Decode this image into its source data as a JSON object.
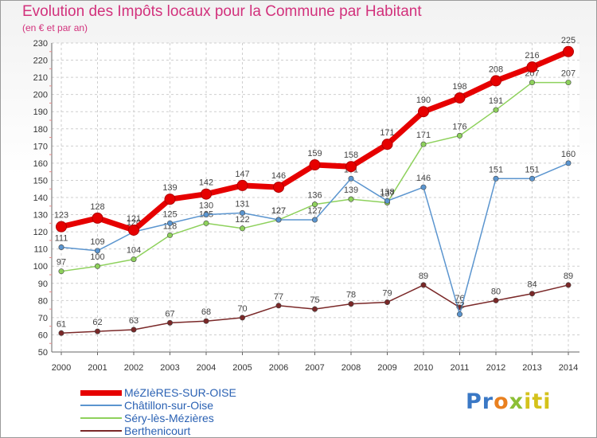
{
  "page": {
    "title": "Evolution des Impôts locaux pour la Commune par Habitant",
    "subtitle": "(en € et par an)"
  },
  "brand": {
    "parts": [
      "Pr",
      "o",
      "x",
      "iti"
    ]
  },
  "chart_data": {
    "type": "line",
    "title": "Evolution des Impôts locaux pour la Commune par Habitant",
    "subtitle": "(en € et par an)",
    "xlabel": "",
    "ylabel": "",
    "x": [
      2000,
      2001,
      2002,
      2003,
      2004,
      2005,
      2006,
      2007,
      2008,
      2009,
      2010,
      2011,
      2012,
      2013,
      2014
    ],
    "ylim": [
      50,
      230
    ],
    "yticks": [
      50,
      60,
      70,
      80,
      90,
      100,
      110,
      120,
      130,
      140,
      150,
      160,
      170,
      180,
      190,
      200,
      210,
      220,
      230
    ],
    "grid": true,
    "legend_position": "bottom-left",
    "series": [
      {
        "name": "Berthenicourt",
        "color": "#7a2828",
        "values": [
          61,
          62,
          63,
          67,
          68,
          70,
          77,
          75,
          78,
          79,
          89,
          76,
          80,
          84,
          89
        ],
        "labels": [
          "61",
          "62",
          "63",
          "67",
          "68",
          "70",
          "77",
          "75",
          "78",
          "79",
          "89",
          "76",
          "80",
          "84",
          "89"
        ]
      },
      {
        "name": "Séry-lès-Mézières",
        "color": "#8ed15c",
        "values": [
          97,
          100,
          104,
          118,
          125,
          122,
          127,
          136,
          139,
          137,
          171,
          176,
          191,
          207,
          207
        ],
        "labels": [
          "97",
          "100",
          "104",
          "118",
          "125",
          "122",
          "127",
          "136",
          "139",
          "137",
          "171",
          "176",
          "191",
          "207",
          "207"
        ]
      },
      {
        "name": "Châtillon-sur-Oise",
        "color": "#5b95cf",
        "values": [
          111,
          109,
          120,
          125,
          130,
          131,
          127,
          127,
          151,
          138,
          146,
          72,
          151,
          151,
          160
        ],
        "labels": [
          "111",
          "109",
          "120",
          "125",
          "130",
          "131",
          "127",
          "127",
          "151",
          "138",
          "146",
          "72",
          "151",
          "151",
          "160"
        ]
      },
      {
        "name": "MéZIèRES-SUR-OISE",
        "color": "#e60000",
        "values": [
          123,
          128,
          121,
          139,
          142,
          147,
          146,
          159,
          158,
          171,
          190,
          198,
          208,
          216,
          225
        ],
        "labels": [
          "123",
          "128",
          "121",
          "139",
          "142",
          "147",
          "146",
          "159",
          "158",
          "171",
          "190",
          "198",
          "208",
          "216",
          "225"
        ]
      }
    ]
  }
}
